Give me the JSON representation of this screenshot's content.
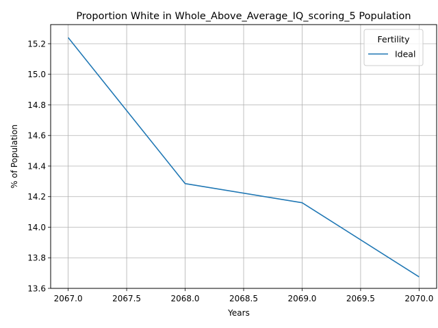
{
  "chart_data": {
    "type": "line",
    "title": "Proportion White in Whole_Above_Average_IQ_scoring_5 Population",
    "xlabel": "Years",
    "ylabel": "% of Population",
    "x": [
      2067,
      2068,
      2069,
      2070
    ],
    "series": [
      {
        "name": "Ideal",
        "color": "#1f77b4",
        "values": [
          15.24,
          14.285,
          14.16,
          13.675
        ]
      }
    ],
    "xlim": [
      2066.85,
      2070.15
    ],
    "ylim": [
      13.6,
      15.325
    ],
    "x_ticks": [
      "2067.0",
      "2067.5",
      "2068.0",
      "2068.5",
      "2069.0",
      "2069.5",
      "2070.0"
    ],
    "x_tick_values": [
      2067.0,
      2067.5,
      2068.0,
      2068.5,
      2069.0,
      2069.5,
      2070.0
    ],
    "y_ticks": [
      "13.6",
      "13.8",
      "14.0",
      "14.2",
      "14.4",
      "14.6",
      "14.8",
      "15.0",
      "15.2"
    ],
    "y_tick_values": [
      13.6,
      13.8,
      14.0,
      14.2,
      14.4,
      14.6,
      14.8,
      15.0,
      15.2
    ],
    "grid": true,
    "legend": {
      "title": "Fertility",
      "placement": "top-right"
    }
  }
}
